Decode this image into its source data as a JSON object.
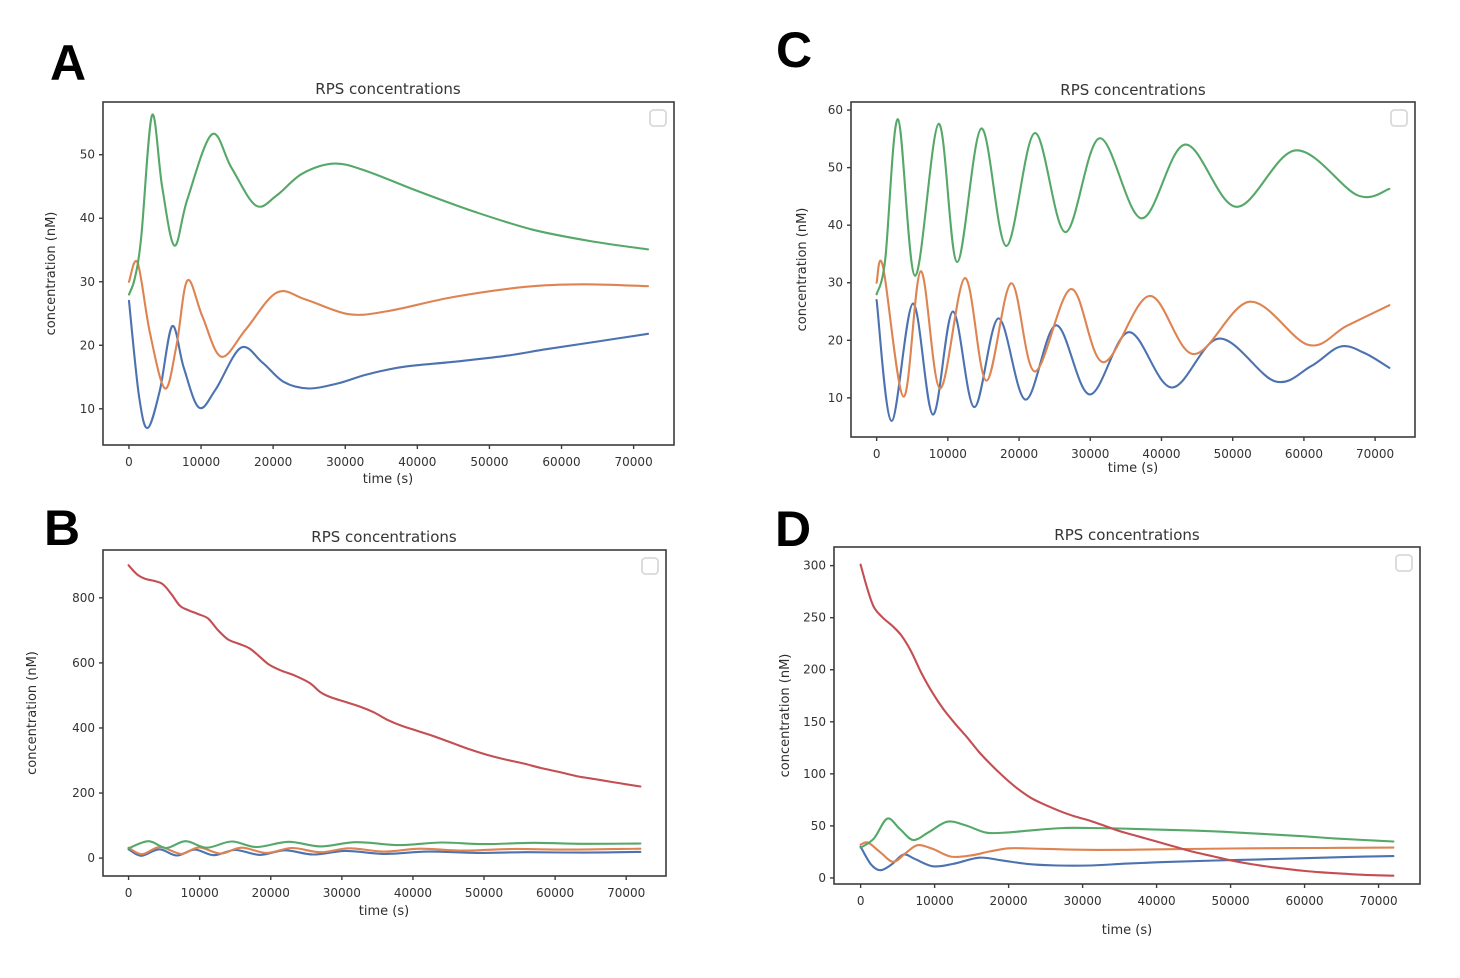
{
  "figure": {
    "background": "#ffffff",
    "palette": {
      "blue": "#4C72B0",
      "orange": "#DD8452",
      "green": "#55A868",
      "red": "#C44E52"
    }
  },
  "chart_data": [
    {
      "panel": "A",
      "type": "line",
      "title": "RPS concentrations",
      "xlabel": "time (s)",
      "ylabel": "concentration (nM)",
      "xlim": [
        -3600,
        75600
      ],
      "ylim": [
        4.3,
        58.3
      ],
      "xticks": [
        0,
        10000,
        20000,
        30000,
        40000,
        50000,
        60000,
        70000
      ],
      "yticks": [
        10,
        20,
        30,
        40,
        50
      ],
      "grid": false,
      "legend": {
        "style": "empty-box",
        "position": "upper right",
        "entries": []
      },
      "series": [
        {
          "name": "blue",
          "color": "#4C72B0",
          "x": [
            0,
            1400,
            2600,
            4300,
            6000,
            7600,
            9700,
            12000,
            15500,
            18500,
            21500,
            25000,
            29000,
            33000,
            38000,
            45000,
            52000,
            58000,
            65000,
            72000
          ],
          "y": [
            27,
            12,
            7,
            13,
            23,
            16.5,
            10.2,
            13,
            19.6,
            17.3,
            14.2,
            13.2,
            14,
            15.4,
            16.6,
            17.4,
            18.3,
            19.4,
            20.6,
            21.8
          ]
        },
        {
          "name": "orange",
          "color": "#DD8452",
          "x": [
            0,
            1200,
            2900,
            5000,
            6600,
            8100,
            10200,
            12800,
            16200,
            20500,
            24500,
            30500,
            36000,
            45000,
            55000,
            63000,
            72000
          ],
          "y": [
            30,
            33,
            22,
            13.2,
            20,
            30.2,
            24.5,
            18.2,
            22.5,
            28.3,
            27.2,
            24.9,
            25.4,
            27.6,
            29.2,
            29.6,
            29.3
          ]
        },
        {
          "name": "green",
          "color": "#55A868",
          "x": [
            0,
            800,
            1700,
            3200,
            4600,
            6300,
            8100,
            11500,
            14200,
            17600,
            20500,
            24000,
            28500,
            33000,
            40000,
            48000,
            56000,
            64000,
            72000
          ],
          "y": [
            28,
            30.5,
            37,
            56.2,
            45,
            35.7,
            43,
            53.2,
            48,
            42,
            43.6,
            47,
            48.6,
            47.4,
            44.3,
            41,
            38.2,
            36.4,
            35.1
          ]
        }
      ]
    },
    {
      "panel": "B",
      "type": "line",
      "title": "RPS concentrations",
      "xlabel": "time (s)",
      "ylabel": "concentration (nM)",
      "xlim": [
        -3600,
        75600
      ],
      "ylim": [
        -55,
        947
      ],
      "xticks": [
        0,
        10000,
        20000,
        30000,
        40000,
        50000,
        60000,
        70000
      ],
      "yticks": [
        0,
        200,
        400,
        600,
        800
      ],
      "grid": false,
      "legend": {
        "style": "empty-box",
        "position": "upper right",
        "entries": []
      },
      "series": [
        {
          "name": "blue",
          "color": "#4C72B0",
          "x": [
            0,
            1800,
            4300,
            6800,
            9300,
            12000,
            15000,
            18500,
            22000,
            26000,
            30500,
            36000,
            42000,
            49000,
            56000,
            64000,
            72000
          ],
          "y": [
            27,
            7,
            27,
            8,
            26,
            9,
            25,
            10,
            24,
            11,
            22,
            13,
            20,
            16,
            18,
            17,
            19
          ]
        },
        {
          "name": "orange",
          "color": "#DD8452",
          "x": [
            0,
            1900,
            4400,
            7400,
            9900,
            12900,
            15900,
            19400,
            23000,
            27000,
            31000,
            36000,
            41000,
            47000,
            54000,
            62000,
            72000
          ],
          "y": [
            32,
            12,
            34,
            13,
            33,
            14,
            32,
            16,
            31,
            18,
            30,
            20,
            29,
            23,
            28,
            26,
            29
          ]
        },
        {
          "name": "green",
          "color": "#55A868",
          "x": [
            0,
            2800,
            5300,
            8000,
            11000,
            14500,
            18000,
            22500,
            27000,
            32000,
            38000,
            44000,
            50000,
            57000,
            64000,
            72000
          ],
          "y": [
            30,
            52,
            31,
            52,
            32,
            51,
            34,
            50,
            36,
            49,
            40,
            48,
            43,
            47,
            44,
            45
          ]
        },
        {
          "name": "red",
          "color": "#C44E52",
          "x": [
            0,
            1200,
            2400,
            3600,
            4800,
            6000,
            7200,
            8400,
            9800,
            11200,
            12600,
            14000,
            15600,
            17000,
            18400,
            19800,
            21500,
            23500,
            25500,
            27000,
            28500,
            30500,
            32500,
            34500,
            36500,
            38500,
            40500,
            43000,
            45500,
            48000,
            50500,
            53000,
            55500,
            58000,
            60500,
            63000,
            65500,
            68000,
            70000,
            72000
          ],
          "y": [
            900,
            872,
            858,
            852,
            842,
            812,
            776,
            762,
            750,
            736,
            700,
            672,
            658,
            645,
            620,
            594,
            576,
            560,
            538,
            510,
            494,
            480,
            466,
            448,
            424,
            406,
            392,
            374,
            354,
            334,
            317,
            303,
            291,
            277,
            265,
            252,
            243,
            234,
            227,
            220
          ]
        }
      ]
    },
    {
      "panel": "C",
      "type": "line",
      "title": "RPS concentrations",
      "xlabel": "time (s)",
      "ylabel": "concentration (nM)",
      "xlim": [
        -3600,
        75600
      ],
      "ylim": [
        3.2,
        61.4
      ],
      "xticks": [
        0,
        10000,
        20000,
        30000,
        40000,
        50000,
        60000,
        70000
      ],
      "yticks": [
        10,
        20,
        30,
        40,
        50,
        60
      ],
      "grid": false,
      "legend": {
        "style": "empty-box",
        "position": "upper right",
        "entries": []
      },
      "series": [
        {
          "name": "blue",
          "color": "#4C72B0",
          "x": [
            0,
            2100,
            5100,
            7900,
            10700,
            13700,
            17100,
            20900,
            25200,
            29900,
            35400,
            41400,
            48100,
            55900,
            61000,
            65100,
            68500,
            72000
          ],
          "y": [
            27,
            6,
            26.4,
            7.1,
            25,
            8.4,
            23.8,
            9.7,
            22.6,
            10.6,
            21.4,
            11.8,
            20.3,
            12.9,
            15.5,
            18.9,
            17.8,
            15.2
          ]
        },
        {
          "name": "orange",
          "color": "#DD8452",
          "x": [
            0,
            900,
            3800,
            6200,
            8900,
            12400,
            15400,
            18900,
            22200,
            27300,
            31800,
            38300,
            44500,
            52400,
            60600,
            66000,
            72000
          ],
          "y": [
            30,
            32.8,
            10.2,
            32,
            11.6,
            30.8,
            13,
            29.9,
            14.6,
            28.9,
            16.2,
            27.7,
            17.6,
            26.7,
            19.2,
            22.5,
            26.1
          ]
        },
        {
          "name": "green",
          "color": "#55A868",
          "x": [
            0,
            1200,
            3000,
            5400,
            8700,
            11300,
            14700,
            18200,
            22200,
            26500,
            31300,
            37200,
            43300,
            50500,
            58800,
            67500,
            72000
          ],
          "y": [
            28,
            34,
            58.4,
            31.2,
            57.6,
            33.6,
            56.8,
            36.4,
            56,
            38.8,
            55.1,
            41.2,
            54,
            43.2,
            53,
            45.2,
            46.3
          ]
        }
      ]
    },
    {
      "panel": "D",
      "type": "line",
      "title": "RPS concentrations",
      "xlabel": "time (s)",
      "ylabel": "concentration (nM)",
      "xlim": [
        -3600,
        75600
      ],
      "ylim": [
        -5.8,
        317.9
      ],
      "xticks": [
        0,
        10000,
        20000,
        30000,
        40000,
        50000,
        60000,
        70000
      ],
      "yticks": [
        0,
        50,
        100,
        150,
        200,
        250,
        300
      ],
      "grid": false,
      "legend": {
        "style": "empty-box",
        "position": "upper right",
        "entries": []
      },
      "series": [
        {
          "name": "blue",
          "color": "#4C72B0",
          "x": [
            0,
            1400,
            2700,
            4200,
            5800,
            7400,
            9800,
            12500,
            16000,
            19000,
            22500,
            26500,
            31000,
            36000,
            42000,
            48000,
            54000,
            60000,
            66000,
            72000
          ],
          "y": [
            30,
            13,
            7.5,
            13,
            22.5,
            18,
            11.2,
            13.5,
            19.5,
            17,
            13.5,
            12,
            12,
            13.8,
            15.5,
            16.8,
            17.8,
            19,
            20.2,
            21
          ]
        },
        {
          "name": "orange",
          "color": "#DD8452",
          "x": [
            0,
            1000,
            2600,
            4400,
            6100,
            7700,
            9700,
            12200,
            14800,
            17500,
            20000,
            23000,
            27000,
            32000,
            38000,
            44000,
            50000,
            56000,
            62000,
            67000,
            72000
          ],
          "y": [
            32,
            34,
            25,
            15.5,
            24,
            31.5,
            28,
            20.5,
            21.5,
            25.5,
            28.5,
            28.3,
            27.5,
            27,
            27.2,
            27.8,
            28.3,
            28.6,
            28.8,
            29,
            29.2
          ]
        },
        {
          "name": "green",
          "color": "#55A868",
          "x": [
            0,
            1800,
            3600,
            5300,
            7100,
            9200,
            11700,
            14200,
            17000,
            20000,
            23500,
            27500,
            31000,
            35000,
            40000,
            45000,
            50000,
            55000,
            60000,
            64000,
            68000,
            72000
          ],
          "y": [
            29,
            38,
            57,
            47,
            36.5,
            44,
            54,
            50.5,
            43.5,
            43.8,
            46,
            48,
            48,
            47.5,
            46.5,
            45.5,
            44,
            42,
            40,
            38,
            36.5,
            35
          ]
        },
        {
          "name": "red",
          "color": "#C44E52",
          "x": [
            0,
            900,
            1800,
            3000,
            4300,
            5500,
            6800,
            8200,
            9700,
            11200,
            12800,
            14400,
            16000,
            17600,
            19200,
            21000,
            23000,
            25000,
            27000,
            29000,
            31000,
            33000,
            35000,
            37500,
            40000,
            42500,
            45000,
            47500,
            50000,
            53000,
            56000,
            59000,
            62000,
            65000,
            68000,
            72000
          ],
          "y": [
            301,
            278,
            260,
            250,
            242,
            233,
            218,
            197,
            178,
            162,
            148,
            135,
            121,
            109,
            98,
            87,
            77,
            70,
            64,
            59,
            55,
            50,
            45,
            40,
            35,
            30,
            25,
            21,
            17,
            13,
            10,
            7.5,
            5.5,
            4.2,
            3,
            2.2
          ]
        }
      ]
    }
  ]
}
